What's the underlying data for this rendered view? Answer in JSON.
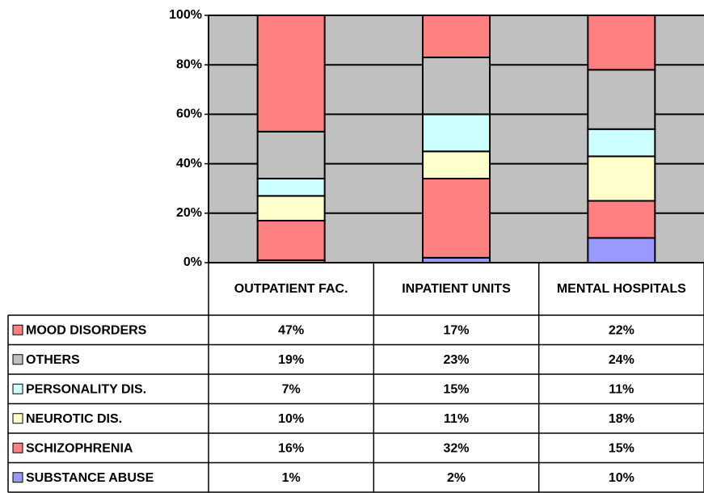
{
  "chart_data": {
    "type": "stacked_bar_100",
    "categories": [
      "OUTPATIENT FAC.",
      "INPATIENT UNITS",
      "MENTAL HOSPITALS"
    ],
    "series": [
      {
        "name": "MOOD DISORDERS",
        "color": "#ff8080",
        "values": [
          47,
          17,
          22
        ],
        "value_labels": [
          "47%",
          "17%",
          "22%"
        ]
      },
      {
        "name": "OTHERS",
        "color": "#c0c0c0",
        "values": [
          19,
          23,
          24
        ],
        "value_labels": [
          "19%",
          "23%",
          "24%"
        ]
      },
      {
        "name": "PERSONALITY DIS.",
        "color": "#ccffff",
        "values": [
          7,
          15,
          11
        ],
        "value_labels": [
          "7%",
          "15%",
          "11%"
        ]
      },
      {
        "name": "NEUROTIC DIS.",
        "color": "#ffffcc",
        "values": [
          10,
          11,
          18
        ],
        "value_labels": [
          "10%",
          "11%",
          "18%"
        ]
      },
      {
        "name": "SCHIZOPHRENIA",
        "color": "#ff8080",
        "values": [
          16,
          32,
          15
        ],
        "value_labels": [
          "16%",
          "32%",
          "15%"
        ]
      },
      {
        "name": "SUBSTANCE ABUSE",
        "color": "#9999ff",
        "values": [
          1,
          2,
          10
        ],
        "value_labels": [
          "1%",
          "2%",
          "10%"
        ]
      }
    ],
    "ylim": [
      0,
      100
    ],
    "yticks": [
      {
        "value": 0,
        "label": "0%"
      },
      {
        "value": 20,
        "label": "20%"
      },
      {
        "value": 40,
        "label": "40%"
      },
      {
        "value": 60,
        "label": "60%"
      },
      {
        "value": 80,
        "label": "80%"
      },
      {
        "value": 100,
        "label": "100%"
      }
    ],
    "grid": true,
    "plot_background": "#c0c0c0"
  }
}
